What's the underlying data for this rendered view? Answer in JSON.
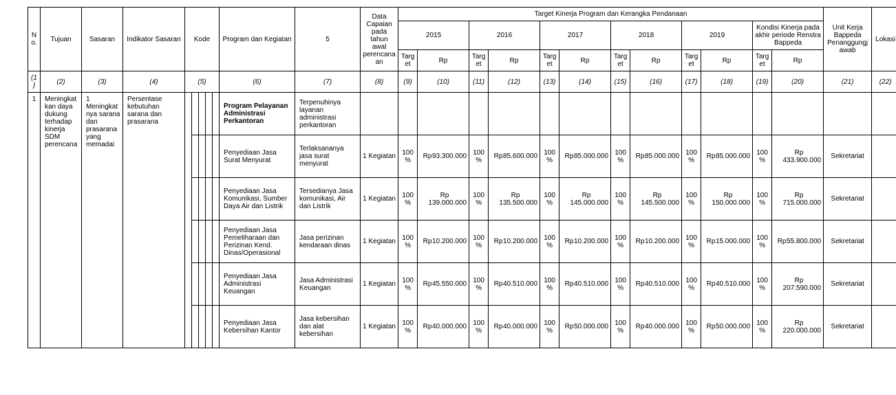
{
  "header": {
    "super_target": "Target Kinerja Program dan Kerangka Pendanaan",
    "no": "No.",
    "tujuan": "Tujuan",
    "sasaran": "Sasaran",
    "indikator": "Indikator Sasaran",
    "kode": "Kode",
    "program": "Program dan Kegiatan",
    "c5": "5",
    "data_capaian": "Data Capaian pada tahun awal perencanaan",
    "y2015": "2015",
    "y2016": "2016",
    "y2017": "2017",
    "y2018": "2018",
    "y2019": "2019",
    "kondisi": "Kondisi Kinerja pada akhir periode Renstra Bappeda",
    "unit": "Unit Kerja Bappeda Penanggungjawab",
    "lokasi": "Lokasi",
    "target": "Target",
    "rp": "Rp"
  },
  "colnums": {
    "c1": "(1)",
    "c2": "(2)",
    "c3": "(3)",
    "c4": "(4)",
    "c5": "(5)",
    "c6": "(6)",
    "c7": "(7)",
    "c8": "(8)",
    "c9": "(9)",
    "c10": "(10)",
    "c11": "(11)",
    "c12": "(12)",
    "c13": "(13)",
    "c14": "(14)",
    "c15": "(15)",
    "c16": "(16)",
    "c17": "(17)",
    "c18": "(18)",
    "c19": "(19)",
    "c20": "(20)",
    "c21": "(21)",
    "c22": "(22)"
  },
  "body": {
    "no1": "1",
    "tujuan1": "Meningkatkan daya dukung terhadap kinerja SDM perencana",
    "sasaran1": "1 Meningkatnya sarana dan prasarana  yang memadai",
    "indikator1": "Persentase kebutuhan sarana dan prasarana",
    "program_title": "Program Pelayanan Administrasi Perkantoran",
    "program_out": "Terpenuhinya layanan administrasi perkantoran",
    "rp_label": "Rp",
    "pct": "100%",
    "unit_sek": "Sekretariat",
    "keg1": "1 Kegiatan",
    "r1": {
      "prog": "Penyediaan Jasa Surat Menyurat",
      "out": "Terlaksananya jasa surat menyurat",
      "v2015": "93.300.000",
      "v2016": "85.600.000",
      "v2017": "85.000.000",
      "v2018": "85.000.000",
      "v2019": "85.000.000",
      "vk": "433.900.000"
    },
    "r2": {
      "prog": "Penyediaan Jasa Komunikasi, Sumber Daya Air dan Listrik",
      "out": "Tersedianya Jasa komunikasi, Air dan Listrik",
      "v2015": "139.000.000",
      "v2016": "135.500.000",
      "v2017": "145.000.000",
      "v2018": "145.500.000",
      "v2019": "150.000.000",
      "vk": "715.000.000"
    },
    "r3": {
      "prog": "Penyediaan Jasa Pemeliharaan dan Perizinan Kend. Dinas/Operasional",
      "out": "Jasa perizinan kendaraan dinas",
      "v2015": "10.200.000",
      "v2016": "10.200.000",
      "v2017": "10.200.000",
      "v2018": "10.200.000",
      "v2019": "15.000.000",
      "vk": "55.800.000"
    },
    "r4": {
      "prog": "Penyediaan Jasa Administrasi Keuangan",
      "out": "Jasa Administrasi Keuangan",
      "v2015": "45.550.000",
      "v2016": "40.510.000",
      "v2017": "40.510.000",
      "v2018": "40.510.000",
      "v2019": "40.510.000",
      "vk": "207.590.000"
    },
    "r5": {
      "prog": "Penyediaan Jasa Kebersihan Kantor",
      "out": "Jasa kebersihan dan alat kebersihan",
      "v2015": "40.000.000",
      "v2016": "40.000.000",
      "v2017": "50.000.000",
      "v2018": "40.000.000",
      "v2019": "50.000.000",
      "vk": "220.000.000"
    }
  }
}
